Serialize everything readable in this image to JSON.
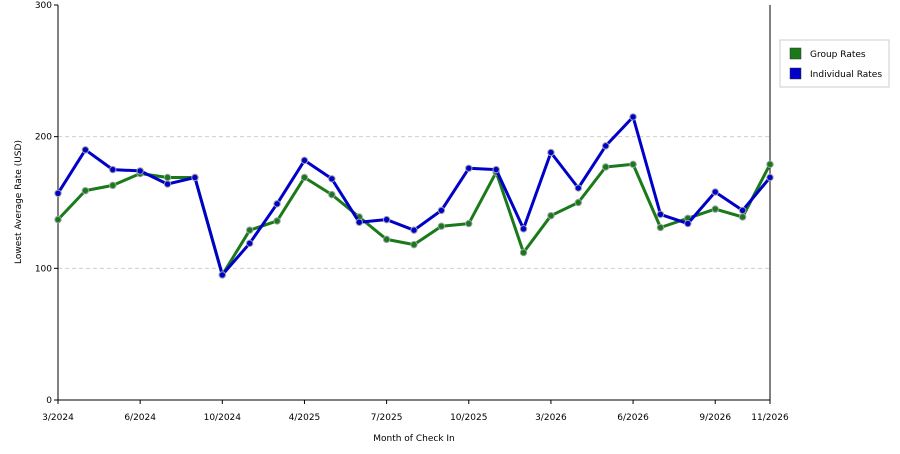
{
  "chart_data": {
    "type": "line",
    "title": "",
    "xlabel": "Month of Check In",
    "ylabel": "Lowest Average Rate (USD)",
    "ylim": [
      0,
      300
    ],
    "yticks": [
      0,
      100,
      200,
      300
    ],
    "grid": true,
    "legend_position": "top-right",
    "x_tick_labels": [
      "3/2024",
      "6/2024",
      "10/2024",
      "4/2025",
      "7/2025",
      "10/2025",
      "3/2026",
      "6/2026",
      "9/2026",
      "11/2026"
    ],
    "x_tick_index": [
      0,
      3,
      6,
      9,
      12,
      15,
      18,
      21,
      24,
      26
    ],
    "series": [
      {
        "name": "Group Rates",
        "color": "#1a7a1a",
        "values": [
          137,
          159,
          163,
          172,
          169,
          169,
          95,
          129,
          136,
          169,
          156,
          139,
          122,
          118,
          132,
          134,
          173,
          112,
          140,
          150,
          177,
          179,
          131,
          138,
          145,
          139,
          179
        ]
      },
      {
        "name": "Individual Rates",
        "color": "#0000c8",
        "values": [
          157,
          190,
          175,
          174,
          164,
          169,
          95,
          119,
          149,
          182,
          168,
          135,
          137,
          129,
          144,
          176,
          175,
          130,
          188,
          161,
          193,
          215,
          141,
          134,
          158,
          144,
          169
        ]
      }
    ]
  }
}
